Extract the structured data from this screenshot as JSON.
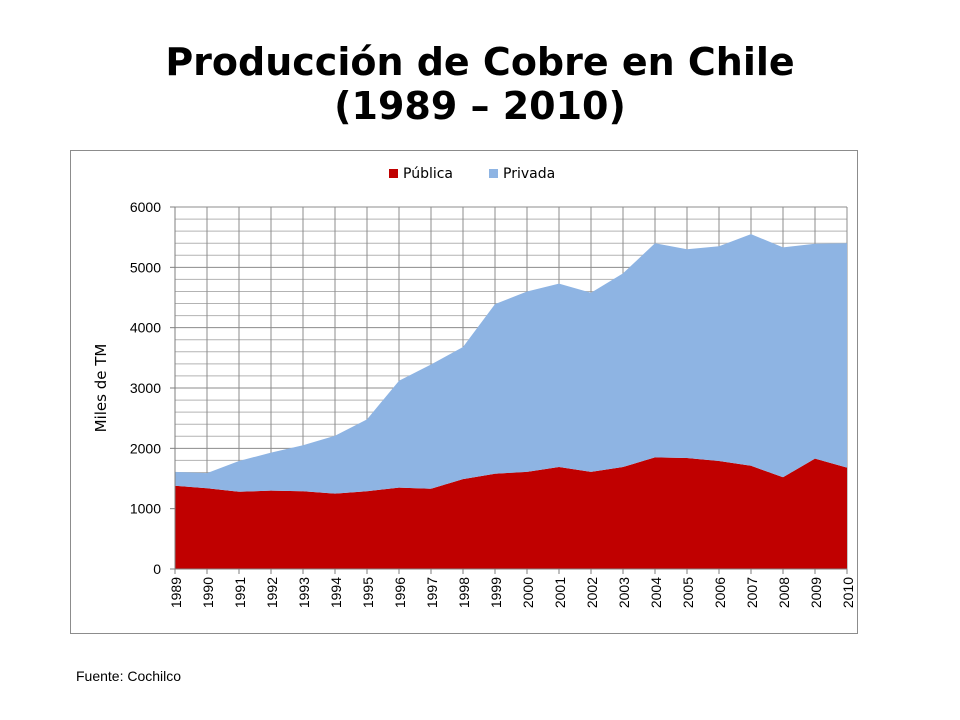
{
  "slide": {
    "title_line1": "Producción de Cobre en Chile",
    "title_line2": "(1989 – 2010)",
    "source": "Fuente: Cochilco"
  },
  "chart_data": {
    "type": "area",
    "stacked": true,
    "ylabel": "Miles de TM",
    "xlabel": "",
    "ylim": [
      0,
      6000
    ],
    "yticks": [
      0,
      1000,
      2000,
      3000,
      4000,
      5000,
      6000
    ],
    "grid": true,
    "legend_position": "top",
    "categories": [
      "1989",
      "1990",
      "1991",
      "1992",
      "1993",
      "1994",
      "1995",
      "1996",
      "1997",
      "1998",
      "1999",
      "2000",
      "2001",
      "2002",
      "2003",
      "2004",
      "2005",
      "2006",
      "2007",
      "2008",
      "2009",
      "2010"
    ],
    "series": [
      {
        "name": "Pública",
        "color": "#c00000",
        "values": [
          1380,
          1340,
          1280,
          1300,
          1290,
          1250,
          1290,
          1350,
          1330,
          1490,
          1580,
          1610,
          1690,
          1610,
          1690,
          1850,
          1840,
          1790,
          1710,
          1520,
          1830,
          1680
        ]
      },
      {
        "name": "Privada",
        "color": "#8eb4e3",
        "values": [
          230,
          250,
          510,
          630,
          760,
          960,
          1190,
          1770,
          2060,
          2190,
          2810,
          2990,
          3040,
          2970,
          3210,
          3550,
          3460,
          3560,
          3840,
          3810,
          3560,
          3720
        ]
      }
    ]
  }
}
